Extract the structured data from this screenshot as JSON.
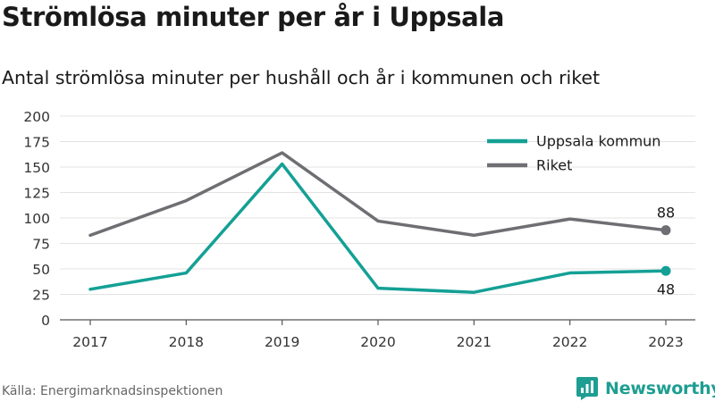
{
  "title": "Strömlösa minuter per år i Uppsala",
  "subtitle": "Antal strömlösa minuter per hushåll och år i kommunen och riket",
  "source": "Källa: Energimarknadsinspektionen",
  "brand": {
    "name": "Newsworthy",
    "icon": "newsworthy-logo-icon",
    "color": "#1e9e92"
  },
  "chart_data": {
    "type": "line",
    "x": [
      "2017",
      "2018",
      "2019",
      "2020",
      "2021",
      "2022",
      "2023"
    ],
    "ylim": [
      0,
      200
    ],
    "yticks": [
      0,
      25,
      50,
      75,
      100,
      125,
      150,
      175,
      200
    ],
    "grid": true,
    "legend_position": "top-right",
    "series": [
      {
        "name": "Uppsala kommun",
        "color": "#14a095",
        "values": [
          30,
          46,
          153,
          31,
          27,
          46,
          48
        ],
        "end_label": "48"
      },
      {
        "name": "Riket",
        "color": "#6e6e73",
        "values": [
          83,
          117,
          164,
          97,
          83,
          99,
          88
        ],
        "end_label": "88"
      }
    ]
  }
}
